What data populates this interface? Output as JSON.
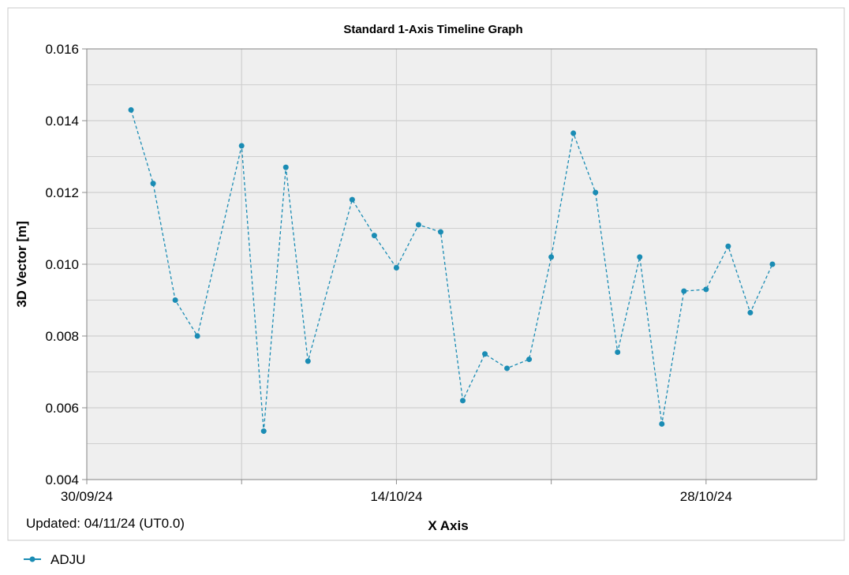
{
  "colors": {
    "series": "#1a8cb4",
    "plot_bg": "#efefef",
    "grid": "#cfcfcf",
    "frame": "#8c8c8c"
  },
  "footer": {
    "updated": "Updated: 04/11/24 (UT0.0)"
  },
  "legend": {
    "position": "bottom-left"
  },
  "chart_data": {
    "type": "line",
    "title": "Standard 1-Axis Timeline Graph",
    "xlabel": "X Axis",
    "ylabel": "3D Vector [m]",
    "xlim": [
      "2024-09-30",
      "2024-11-02"
    ],
    "ylim": [
      0.004,
      0.016
    ],
    "yticks": [
      "0.004",
      "0.006",
      "0.008",
      "0.010",
      "0.012",
      "0.014",
      "0.016"
    ],
    "xticks": [
      {
        "date": "2024-09-30",
        "label": "30/09/24"
      },
      {
        "date": "2024-10-14",
        "label": "14/10/24"
      },
      {
        "date": "2024-10-28",
        "label": "28/10/24"
      }
    ],
    "grid": true,
    "series": [
      {
        "name": "ADJU",
        "x": [
          "2024-10-02",
          "2024-10-03",
          "2024-10-04",
          "2024-10-05",
          "2024-10-07",
          "2024-10-08",
          "2024-10-09",
          "2024-10-10",
          "2024-10-12",
          "2024-10-13",
          "2024-10-14",
          "2024-10-15",
          "2024-10-16",
          "2024-10-17",
          "2024-10-18",
          "2024-10-19",
          "2024-10-20",
          "2024-10-21",
          "2024-10-22",
          "2024-10-23",
          "2024-10-24",
          "2024-10-25",
          "2024-10-26",
          "2024-10-27",
          "2024-10-28",
          "2024-10-29",
          "2024-10-30",
          "2024-10-31"
        ],
        "y": [
          0.0143,
          0.01225,
          0.009,
          0.008,
          0.0133,
          0.00535,
          0.0127,
          0.0073,
          0.0118,
          0.0108,
          0.0099,
          0.0111,
          0.0109,
          0.0062,
          0.0075,
          0.0071,
          0.00735,
          0.0102,
          0.01365,
          0.012,
          0.00755,
          0.0102,
          0.00555,
          0.00925,
          0.0093,
          0.0105,
          0.00865,
          0.01
        ]
      }
    ]
  }
}
